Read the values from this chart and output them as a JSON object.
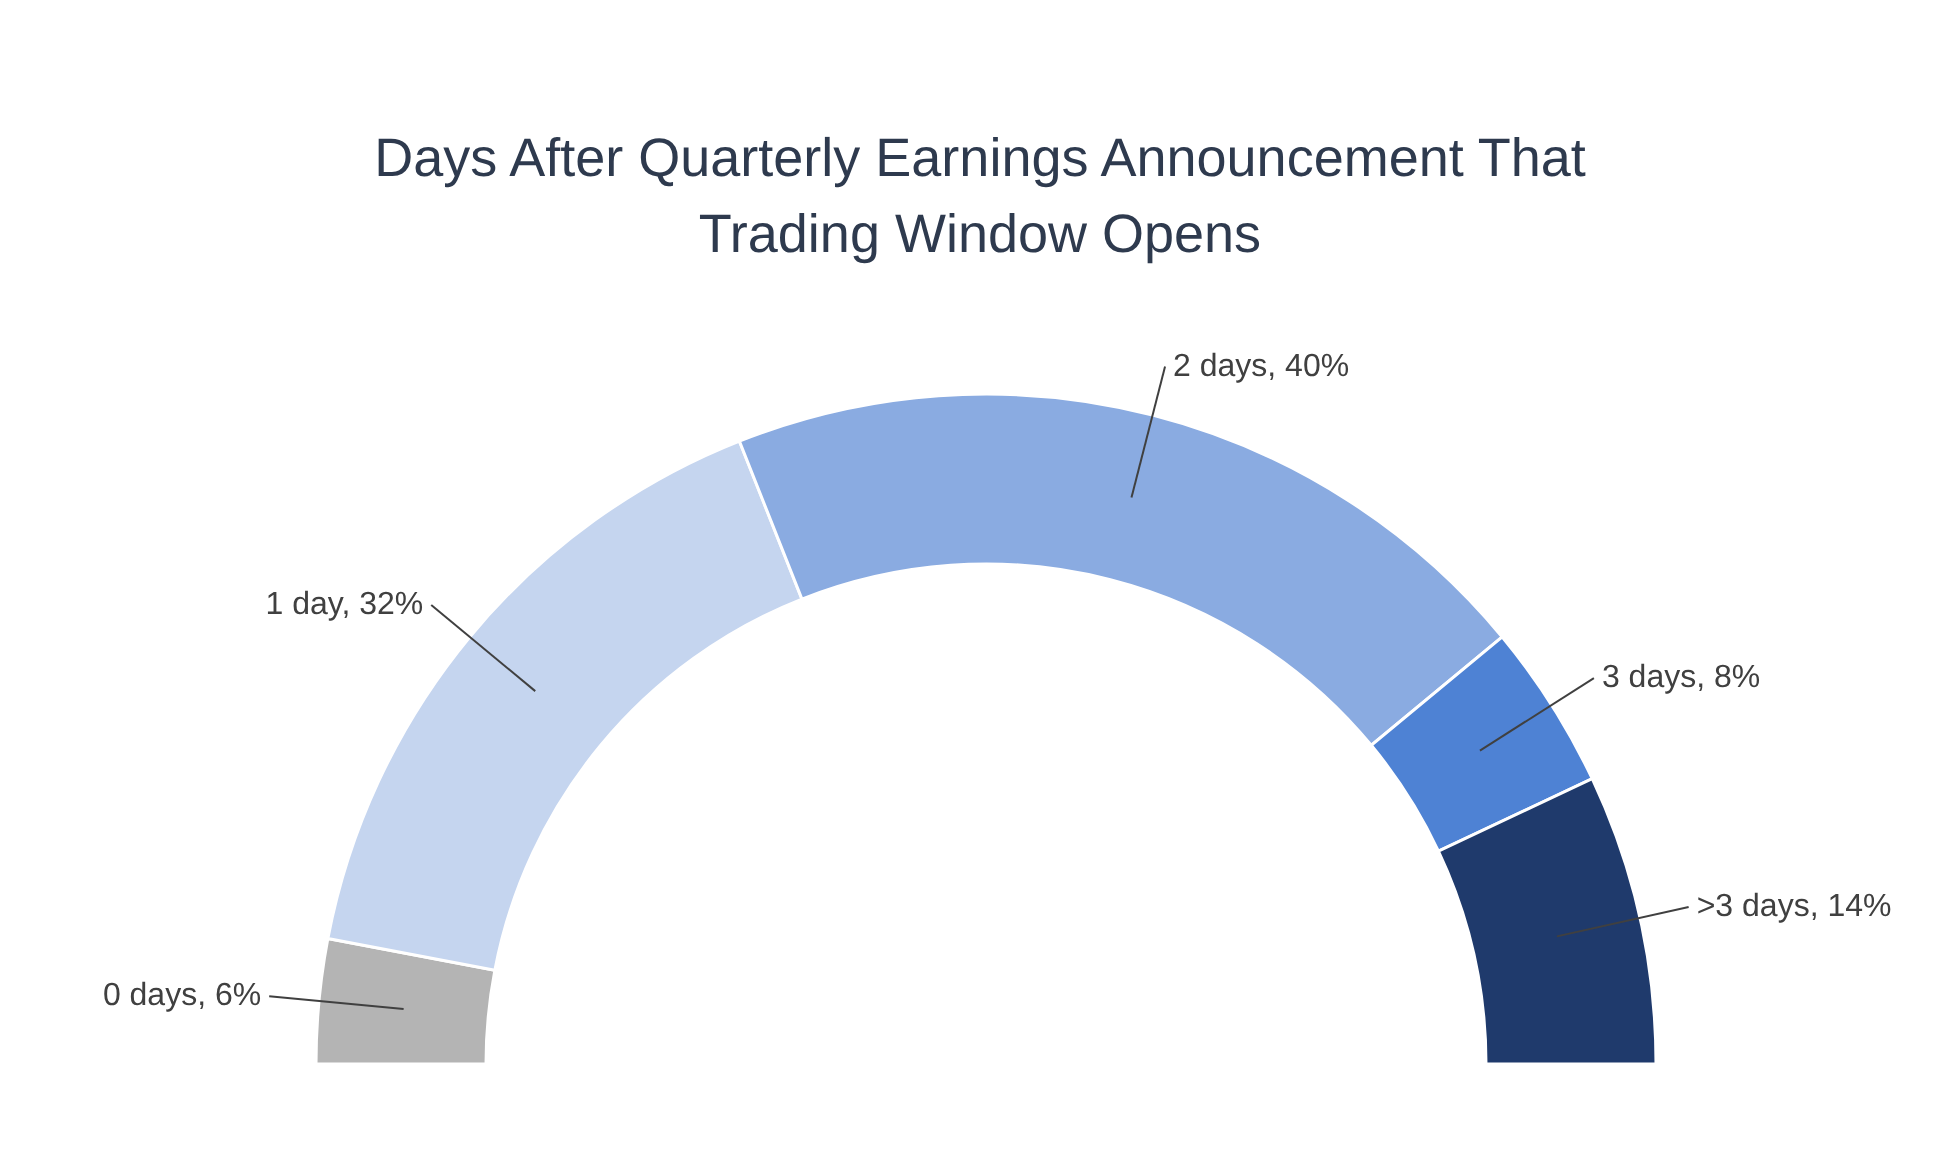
{
  "chart_data": {
    "type": "donut",
    "title": "Days After Quarterly Earnings Announcement That Trading Window Opens",
    "categories": [
      "0 days",
      "1 day",
      "2 days",
      "3 days",
      ">3 days"
    ],
    "values": [
      6,
      32,
      40,
      8,
      14
    ],
    "value_labels": [
      "6%",
      "32%",
      "40%",
      "8%",
      "14%"
    ],
    "colors": [
      "#b4b4b4",
      "#c5d5ef",
      "#8aabe1",
      "#4e82d4",
      "#1f3a6c"
    ]
  }
}
